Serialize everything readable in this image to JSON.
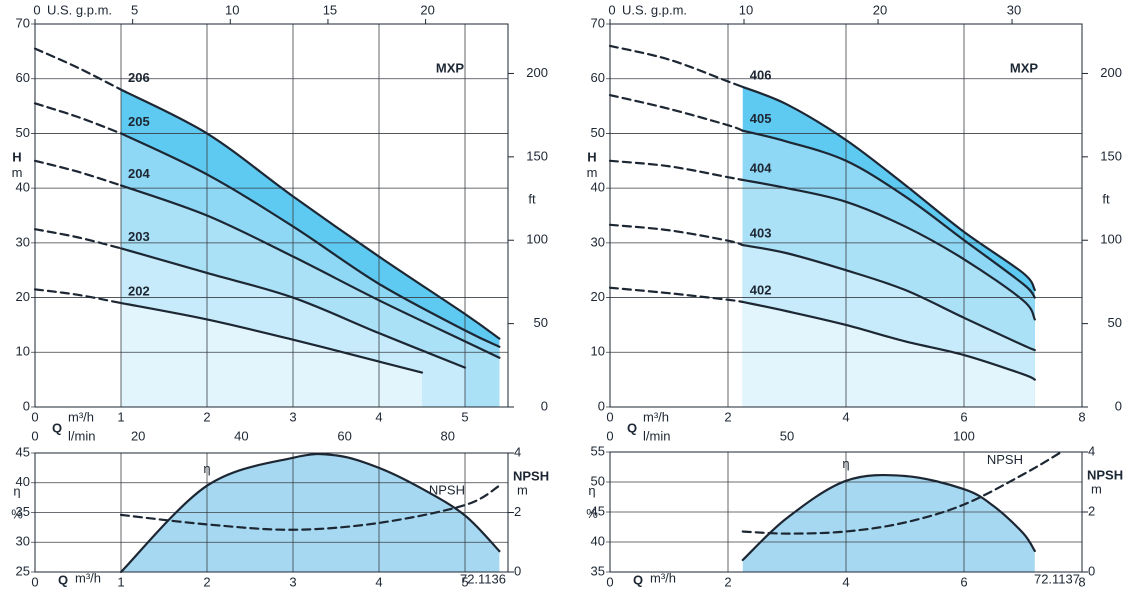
{
  "chart_data": [
    {
      "type": "line",
      "annotation": "MXP",
      "y_label": "H",
      "y_unit": "m",
      "y2_label": "ft",
      "x_label": "Q",
      "x_unit": "m³/h",
      "line_color": "#1d2733",
      "solid_from": 1,
      "xlim": [
        0,
        5.5
      ],
      "xticks": [
        0,
        1,
        2,
        3,
        4,
        5
      ],
      "ylim": [
        0,
        70
      ],
      "yticks": [
        0,
        10,
        20,
        30,
        40,
        50,
        60,
        70
      ],
      "y2lim": [
        0,
        229.66
      ],
      "y2ticks": [
        0,
        50,
        100,
        150,
        200
      ],
      "top_axis": {
        "label": "U.S. g.p.m.",
        "lim": [
          0,
          24.22
        ],
        "ticks": [
          0,
          5,
          10,
          15,
          20
        ]
      },
      "secondary_x_axis": {
        "label": "l/min",
        "lim": [
          0,
          91.67
        ],
        "ticks": [
          0,
          20,
          40,
          60,
          80
        ]
      },
      "series": [
        {
          "name": "206",
          "color": "#5ec9f1",
          "x": [
            0,
            0.5,
            1,
            2,
            3,
            4,
            5,
            5.4
          ],
          "values": [
            65.5,
            62,
            58,
            50,
            38.5,
            27.5,
            17,
            12.5
          ]
        },
        {
          "name": "205",
          "color": "#8ed7f5",
          "x": [
            0,
            0.5,
            1,
            2,
            3,
            4,
            5,
            5.4
          ],
          "values": [
            55.5,
            53,
            50,
            42.5,
            33,
            22.5,
            14,
            11
          ]
        },
        {
          "name": "204",
          "color": "#abe1f7",
          "x": [
            0,
            0.5,
            1,
            2,
            3,
            4,
            5,
            5.4
          ],
          "values": [
            45,
            43,
            40.5,
            35,
            27.5,
            19.5,
            12,
            9
          ]
        },
        {
          "name": "203",
          "color": "#c7ebfa",
          "x": [
            0,
            0.5,
            1,
            2,
            3,
            4,
            5
          ],
          "values": [
            32.5,
            31,
            29,
            24.5,
            20,
            13.5,
            7.2
          ]
        },
        {
          "name": "202",
          "color": "#e2f5fc",
          "x": [
            0,
            0.5,
            1,
            2,
            3,
            4,
            4.5
          ],
          "values": [
            21.5,
            20.5,
            19,
            16,
            12.3,
            8.3,
            6.3
          ]
        }
      ]
    },
    {
      "type": "line",
      "y_label": "η",
      "y_unit": "%",
      "y2_label": "NPSH",
      "y2_unit": "m",
      "x_label": "Q",
      "x_unit": "m³/h",
      "code": "72.1136",
      "line_color": "#1d2733",
      "xlim": [
        0,
        5.5
      ],
      "xticks": [
        0,
        1,
        2,
        3,
        4,
        5
      ],
      "ylim": [
        25,
        45
      ],
      "yticks": [
        25,
        30,
        35,
        40,
        45
      ],
      "y2lim": [
        0,
        4
      ],
      "y2ticks": [
        0,
        2,
        4
      ],
      "series": [
        {
          "name": "η",
          "color": "#a6d9f1",
          "x": [
            1,
            2,
            3,
            3.5,
            4,
            4.5,
            5,
            5.4
          ],
          "values": [
            25,
            39.5,
            44.2,
            44.6,
            42.5,
            39,
            34.5,
            28.5
          ]
        },
        {
          "name": "NPSH",
          "axis": "y2",
          "dashed": true,
          "x": [
            1,
            2,
            3,
            4,
            5,
            5.4
          ],
          "values": [
            1.92,
            1.6,
            1.42,
            1.65,
            2.25,
            2.9
          ]
        }
      ]
    },
    {
      "type": "line",
      "annotation": "MXP",
      "y_label": "H",
      "y_unit": "m",
      "y2_label": "ft",
      "x_label": "Q",
      "x_unit": "m³/h",
      "line_color": "#1d2733",
      "solid_from": 2.25,
      "xlim": [
        0,
        8
      ],
      "xticks": [
        0,
        2,
        4,
        6,
        8
      ],
      "ylim": [
        0,
        70
      ],
      "yticks": [
        0,
        10,
        20,
        30,
        40,
        50,
        60,
        70
      ],
      "y2lim": [
        0,
        229.66
      ],
      "y2ticks": [
        0,
        50,
        100,
        150,
        200
      ],
      "top_axis": {
        "label": "U.S. g.p.m.",
        "lim": [
          0,
          35.22
        ],
        "ticks": [
          0,
          10,
          20,
          30
        ]
      },
      "secondary_x_axis": {
        "label": "l/min",
        "lim": [
          0,
          133.33
        ],
        "ticks": [
          0,
          50,
          100
        ]
      },
      "series": [
        {
          "name": "406",
          "color": "#5ec9f1",
          "x": [
            0,
            1,
            2,
            2.25,
            3,
            4,
            5,
            6,
            7,
            7.2
          ],
          "values": [
            66,
            63.5,
            59.5,
            58.5,
            55.3,
            48.8,
            40.6,
            32,
            24.5,
            21.4
          ]
        },
        {
          "name": "405",
          "color": "#8ed7f5",
          "x": [
            0,
            1,
            2,
            2.25,
            3,
            4,
            5,
            6,
            7,
            7.2
          ],
          "values": [
            57,
            54.5,
            51.5,
            50.5,
            48.5,
            45,
            38.5,
            30.5,
            22.5,
            20
          ]
        },
        {
          "name": "404",
          "color": "#abe1f7",
          "x": [
            0,
            1,
            2,
            2.25,
            3,
            4,
            5,
            6,
            7,
            7.2
          ],
          "values": [
            45,
            44,
            42,
            41.5,
            40,
            37.5,
            33,
            27,
            19.5,
            16
          ]
        },
        {
          "name": "403",
          "color": "#c7ebfa",
          "x": [
            0,
            1,
            2,
            2.25,
            3,
            4,
            5,
            6,
            7,
            7.2
          ],
          "values": [
            33.3,
            32.3,
            30.4,
            29.6,
            28.1,
            25,
            21.4,
            16.3,
            11.3,
            10.4
          ]
        },
        {
          "name": "402",
          "color": "#e2f5fc",
          "x": [
            0,
            1,
            2,
            2.25,
            3,
            4,
            5,
            6,
            7,
            7.2
          ],
          "values": [
            21.8,
            20.8,
            19.6,
            19.2,
            17.5,
            15,
            12,
            9.5,
            6,
            5
          ]
        }
      ]
    },
    {
      "type": "line",
      "y_label": "η",
      "y_unit": "%",
      "y2_label": "NPSH",
      "y2_unit": "m",
      "x_label": "Q",
      "x_unit": "m³/h",
      "code": "72.1137",
      "line_color": "#1d2733",
      "xlim": [
        0,
        8
      ],
      "xticks": [
        0,
        2,
        4,
        6,
        8
      ],
      "ylim": [
        35,
        55
      ],
      "yticks": [
        35,
        40,
        45,
        50,
        55
      ],
      "y2lim": [
        0,
        4
      ],
      "y2ticks": [
        0,
        2,
        4
      ],
      "series": [
        {
          "name": "η",
          "color": "#a6d9f1",
          "x": [
            2.25,
            3,
            4,
            5,
            6,
            6.5,
            7,
            7.2
          ],
          "values": [
            37,
            44,
            50.2,
            51,
            48.8,
            46,
            41.5,
            38.5
          ]
        },
        {
          "name": "NPSH",
          "axis": "y2",
          "dashed": true,
          "x": [
            2.25,
            3,
            4,
            5,
            6,
            7,
            7.65
          ],
          "values": [
            1.35,
            1.28,
            1.35,
            1.65,
            2.25,
            3.25,
            4
          ]
        }
      ]
    }
  ]
}
